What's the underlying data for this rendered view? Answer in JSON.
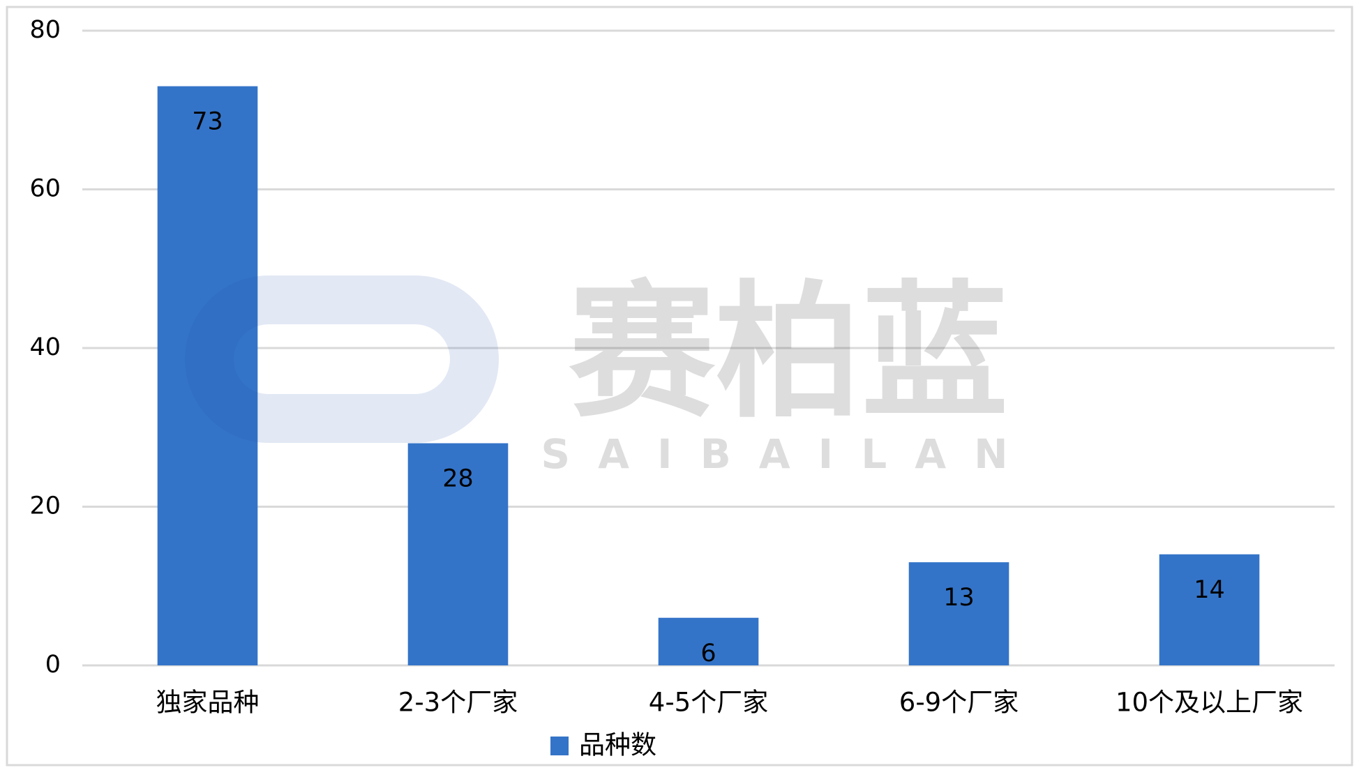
{
  "chart_data": {
    "type": "bar",
    "categories": [
      "独家品种",
      "2-3个厂家",
      "4-5个厂家",
      "6-9个厂家",
      "10个及以上厂家"
    ],
    "series": [
      {
        "name": "品种数",
        "color": "#3474c8",
        "values": [
          73,
          28,
          6,
          13,
          14
        ]
      }
    ],
    "ylim": [
      0,
      80
    ],
    "yticks": [
      0,
      20,
      40,
      60,
      80
    ],
    "grid": true,
    "legend": "bottom",
    "watermark": {
      "text": "赛柏蓝",
      "subtext": "SAIBAILAN"
    }
  }
}
